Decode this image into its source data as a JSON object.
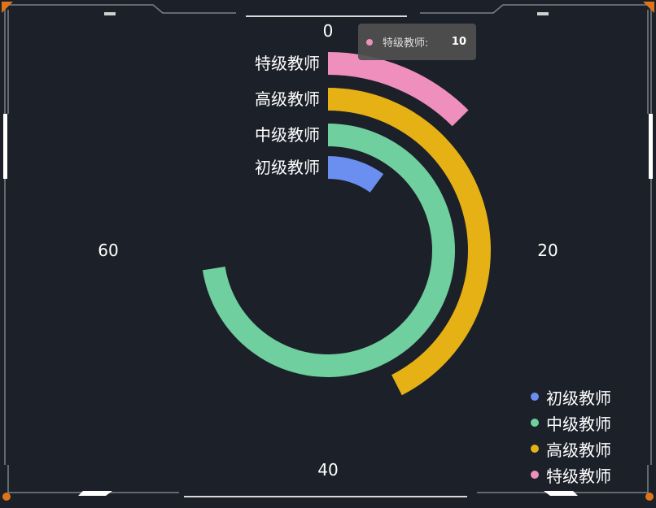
{
  "chart_data": {
    "type": "polar-bar",
    "angle_axis": {
      "min": 0,
      "max": 80,
      "tick_labels": [
        "0",
        "20",
        "40",
        "60"
      ]
    },
    "categories": [
      "初级教师",
      "中级教师",
      "高级教师",
      "特级教师"
    ],
    "values": [
      8,
      58,
      34,
      10
    ],
    "colors": [
      "#6a8ff0",
      "#6fcf9f",
      "#e6b115",
      "#ee8fbd"
    ],
    "legend_position": "bottom-right"
  },
  "tooltip": {
    "name": "特级教师:",
    "value": "10",
    "color": "#ee8fbd"
  },
  "frame": {
    "line_color": "#8a8d94",
    "accent_color": "#e0741a"
  }
}
